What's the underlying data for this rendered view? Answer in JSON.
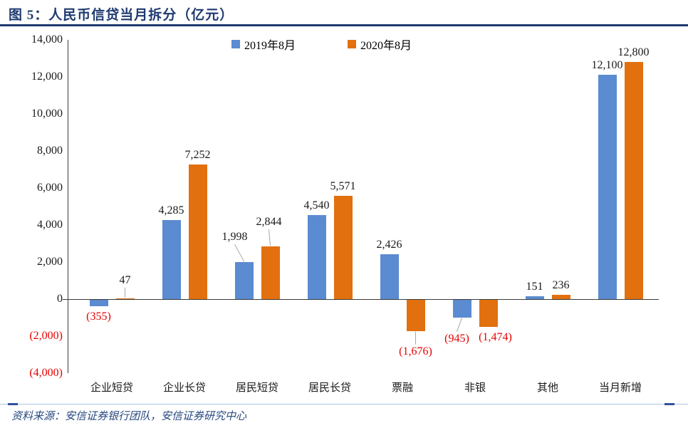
{
  "figure": {
    "title": "图 5：人民币信贷当月拆分（亿元）",
    "source": "资料来源：安信证券银行团队，安信证券研究中心"
  },
  "chart_data": {
    "type": "bar",
    "title": "人民币信贷当月拆分（亿元）",
    "unit": "亿元",
    "categories": [
      "企业短贷",
      "企业长贷",
      "居民短贷",
      "居民长贷",
      "票融",
      "非银",
      "其他",
      "当月新增"
    ],
    "series": [
      {
        "name": "2019年8月",
        "color": "#5B8BD0",
        "values": [
          -355,
          4285,
          1998,
          4540,
          2426,
          -945,
          151,
          12100
        ],
        "data_labels": [
          "(355)",
          "4,285",
          "1,998",
          "4,540",
          "2,426",
          "(945)",
          "151",
          "12,100"
        ]
      },
      {
        "name": "2020年8月",
        "color": "#E2700F",
        "values": [
          47,
          7252,
          2844,
          5571,
          -1676,
          -1474,
          236,
          12800
        ],
        "data_labels": [
          "47",
          "7,252",
          "2,844",
          "5,571",
          "(1,676)",
          "(1,474)",
          "236",
          "12,800"
        ]
      }
    ],
    "y_axis": {
      "min": -4000,
      "max": 14000,
      "step": 2000,
      "tick_values": [
        14000,
        12000,
        10000,
        8000,
        6000,
        4000,
        2000,
        0,
        -2000,
        -4000
      ],
      "tick_labels": [
        "14,000",
        "12,000",
        "10,000",
        "8,000",
        "6,000",
        "4,000",
        "2,000",
        "0",
        "(2,000)",
        "(4,000)"
      ]
    },
    "grid": false,
    "legend_position": "top",
    "negative_label_color": "#E60000"
  }
}
